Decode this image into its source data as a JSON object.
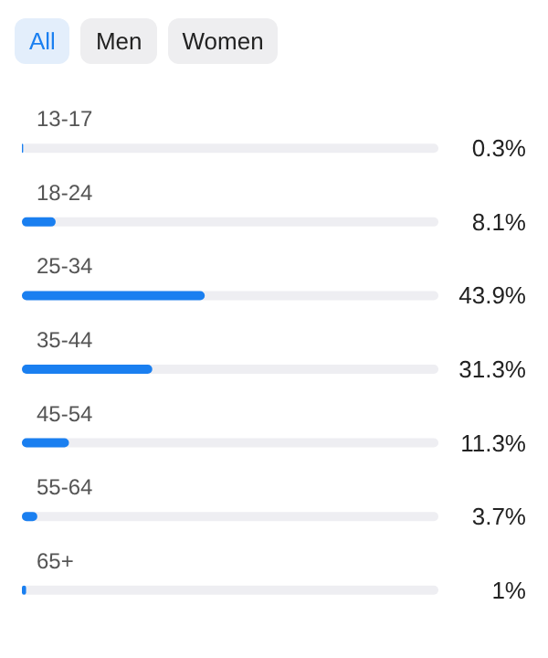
{
  "chart_data": {
    "type": "bar",
    "orientation": "horizontal",
    "annotations": [
      "All",
      "Men",
      "Women"
    ],
    "categories": [
      "13-17",
      "18-24",
      "25-34",
      "35-44",
      "45-54",
      "55-64",
      "65+"
    ],
    "values": [
      0.3,
      8.1,
      43.9,
      31.3,
      11.3,
      3.7,
      1
    ],
    "value_labels": [
      "0.3%",
      "8.1%",
      "43.9%",
      "31.3%",
      "11.3%",
      "3.7%",
      "1%"
    ],
    "color": "#1a7ff0",
    "xlim": [
      0,
      100
    ]
  }
}
